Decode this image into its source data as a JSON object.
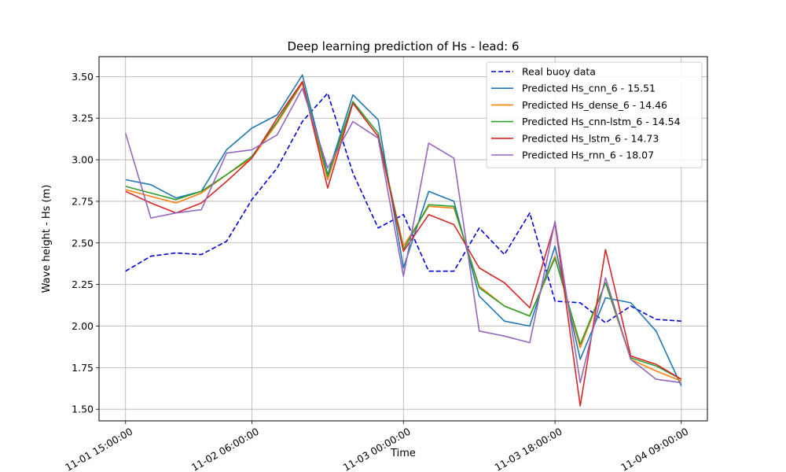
{
  "chart_data": {
    "type": "line",
    "title": "Deep learning prediction of Hs - lead: 6",
    "xlabel": "Time",
    "ylabel": "Wave height - Hs (m)",
    "x_unit": "hours",
    "x_start": "2023-11-01 15:00:00",
    "x": [
      0,
      6,
      12,
      18,
      24,
      30,
      36,
      42,
      48,
      54,
      60,
      66,
      72,
      78,
      84,
      90,
      96,
      102,
      108,
      114,
      120,
      126,
      132
    ],
    "xlim": [
      -6.3,
      138.2
    ],
    "ylim": [
      1.43,
      3.62
    ],
    "xticks": [
      {
        "value": 0,
        "label": "11-01 15:00:00"
      },
      {
        "value": 30,
        "label": "11-02 06:00:00"
      },
      {
        "value": 66,
        "label": "11-03 00:00:00"
      },
      {
        "value": 102,
        "label": "11-03 18:00:00"
      },
      {
        "value": 132,
        "label": "11-04 09:00:00"
      }
    ],
    "yticks": [
      {
        "value": 1.5,
        "label": "1.50"
      },
      {
        "value": 1.75,
        "label": "1.75"
      },
      {
        "value": 2.0,
        "label": "2.00"
      },
      {
        "value": 2.25,
        "label": "2.25"
      },
      {
        "value": 2.5,
        "label": "2.50"
      },
      {
        "value": 2.75,
        "label": "2.75"
      },
      {
        "value": 3.0,
        "label": "3.00"
      },
      {
        "value": 3.25,
        "label": "3.25"
      },
      {
        "value": 3.5,
        "label": "3.50"
      }
    ],
    "grid": true,
    "legend_position": "top-right",
    "series": [
      {
        "name": "Real buoy data",
        "color": "#0000dd",
        "dashed": true,
        "values": [
          2.33,
          2.42,
          2.44,
          2.43,
          2.51,
          2.76,
          2.95,
          3.23,
          3.4,
          2.92,
          2.59,
          2.67,
          2.33,
          2.33,
          2.59,
          2.43,
          2.68,
          2.15,
          2.14,
          2.02,
          2.12,
          2.04,
          2.03
        ]
      },
      {
        "name": "Predicted Hs_cnn_6 - 15.51",
        "color": "#1f77b4",
        "dashed": false,
        "values": [
          2.88,
          2.85,
          2.77,
          2.81,
          3.06,
          3.19,
          3.27,
          3.51,
          2.91,
          3.39,
          3.24,
          2.35,
          2.81,
          2.75,
          2.18,
          2.03,
          2.0,
          2.48,
          1.8,
          2.17,
          2.14,
          1.97,
          1.64
        ]
      },
      {
        "name": "Predicted Hs_dense_6 - 14.46",
        "color": "#ff7f0e",
        "dashed": false,
        "values": [
          2.82,
          2.78,
          2.74,
          2.8,
          2.91,
          3.01,
          3.22,
          3.46,
          2.88,
          3.34,
          3.14,
          2.48,
          2.72,
          2.71,
          2.24,
          2.12,
          2.06,
          2.42,
          1.87,
          2.26,
          1.8,
          1.73,
          1.67
        ]
      },
      {
        "name": "Predicted Hs_cnn-lstm_6 - 14.54",
        "color": "#2ca02c",
        "dashed": false,
        "values": [
          2.84,
          2.8,
          2.76,
          2.81,
          2.91,
          3.02,
          3.23,
          3.47,
          2.9,
          3.35,
          3.16,
          2.46,
          2.73,
          2.72,
          2.23,
          2.12,
          2.06,
          2.41,
          1.89,
          2.26,
          1.81,
          1.76,
          1.68
        ]
      },
      {
        "name": "Predicted Hs_lstm_6 - 14.73",
        "color": "#d62728",
        "dashed": false,
        "values": [
          2.81,
          2.74,
          2.68,
          2.74,
          2.87,
          3.01,
          3.25,
          3.47,
          2.83,
          3.34,
          3.14,
          2.45,
          2.67,
          2.61,
          2.35,
          2.26,
          2.11,
          2.62,
          1.52,
          2.46,
          1.82,
          1.77,
          1.68
        ]
      },
      {
        "name": "Predicted Hs_rnn_6 - 18.07",
        "color": "#9467bd",
        "dashed": false,
        "values": [
          3.16,
          2.65,
          2.68,
          2.7,
          3.04,
          3.06,
          3.15,
          3.43,
          2.95,
          3.23,
          3.13,
          2.3,
          3.1,
          3.01,
          1.97,
          1.94,
          1.9,
          2.63,
          1.66,
          2.29,
          1.8,
          1.68,
          1.66
        ]
      }
    ]
  }
}
